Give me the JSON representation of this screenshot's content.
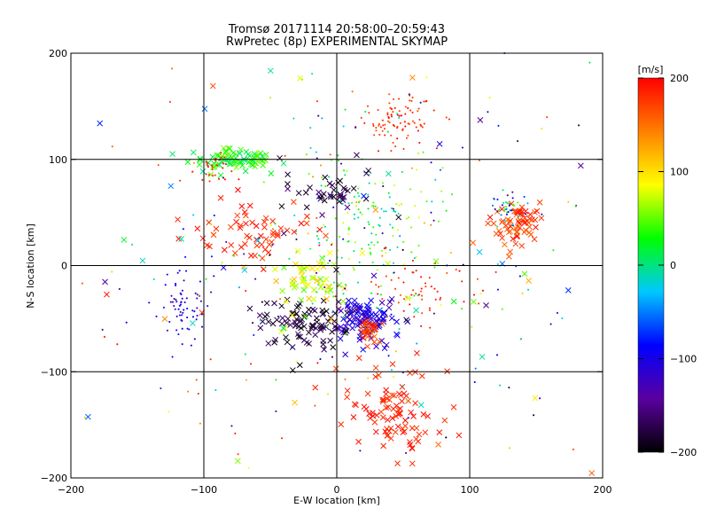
{
  "chart_data": {
    "type": "scatter",
    "title": "Tromsø 20171114 20:58:00–20:59:43",
    "subtitle": "RwPretec (8p) EXPERIMENTAL SKYMAP",
    "xlabel": "E-W location [km]",
    "ylabel": "N-S location [km]",
    "xlim": [
      -200,
      200
    ],
    "ylim": [
      -200,
      200
    ],
    "xticks": [
      -200,
      -100,
      0,
      100,
      200
    ],
    "yticks": [
      -200,
      -100,
      0,
      100,
      200
    ],
    "grid": true,
    "grid_lines": {
      "x": [
        -100,
        0,
        100
      ],
      "y": [
        -100,
        0,
        100
      ]
    },
    "colorbar": {
      "label": "[m/s]",
      "range": [
        -200,
        200
      ],
      "ticks": [
        200,
        100,
        0,
        -100,
        -200
      ],
      "colormap": [
        "#000000",
        "#5a00a0",
        "#0000ff",
        "#00c8ff",
        "#00ff00",
        "#ffff00",
        "#ff8000",
        "#ff0000"
      ]
    },
    "markers": {
      "small": "+",
      "large": "x"
    },
    "clusters": [
      {
        "cx": 45,
        "cy": 137,
        "sx": 15,
        "sy": 12,
        "n": 90,
        "vel": [
          160,
          200
        ],
        "mark": "dot"
      },
      {
        "cx": 43,
        "cy": -138,
        "sx": 17,
        "sy": 20,
        "n": 95,
        "vel": [
          170,
          200
        ],
        "mark": "cross"
      },
      {
        "cx": 133,
        "cy": 40,
        "sx": 9,
        "sy": 12,
        "n": 70,
        "vel": [
          150,
          200
        ],
        "mark": "cross"
      },
      {
        "cx": 128,
        "cy": 52,
        "sx": 8,
        "sy": 10,
        "n": 40,
        "vel": [
          -200,
          100
        ],
        "mark": "dot"
      },
      {
        "cx": -78,
        "cy": 100,
        "sx": 16,
        "sy": 5,
        "n": 80,
        "vel": [
          0,
          60
        ],
        "mark": "cross"
      },
      {
        "cx": -92,
        "cy": 92,
        "sx": 8,
        "sy": 6,
        "n": 30,
        "vel": [
          170,
          200
        ],
        "mark": "dot"
      },
      {
        "cx": -118,
        "cy": -35,
        "sx": 10,
        "sy": 22,
        "n": 70,
        "vel": [
          -130,
          -80
        ],
        "mark": "dot"
      },
      {
        "cx": 20,
        "cy": -50,
        "sx": 12,
        "sy": 10,
        "n": 110,
        "vel": [
          -140,
          -80
        ],
        "mark": "cross"
      },
      {
        "cx": 25,
        "cy": -62,
        "sx": 6,
        "sy": 5,
        "n": 30,
        "vel": [
          150,
          200
        ],
        "mark": "cross"
      },
      {
        "cx": -25,
        "cy": -55,
        "sx": 18,
        "sy": 12,
        "n": 90,
        "vel": [
          -200,
          -160
        ],
        "mark": "cross"
      },
      {
        "cx": 20,
        "cy": 40,
        "sx": 25,
        "sy": 40,
        "n": 160,
        "vel": [
          -30,
          80
        ],
        "mark": "dot"
      },
      {
        "cx": -20,
        "cy": -15,
        "sx": 15,
        "sy": 15,
        "n": 60,
        "vel": [
          40,
          120
        ],
        "mark": "cross"
      },
      {
        "cx": -60,
        "cy": 30,
        "sx": 25,
        "sy": 15,
        "n": 60,
        "vel": [
          170,
          200
        ],
        "mark": "cross"
      },
      {
        "cx": 65,
        "cy": -20,
        "sx": 25,
        "sy": 15,
        "n": 60,
        "vel": [
          160,
          200
        ],
        "mark": "dot"
      },
      {
        "cx": -5,
        "cy": 70,
        "sx": 15,
        "sy": 10,
        "n": 40,
        "vel": [
          -200,
          -150
        ],
        "mark": "cross"
      },
      {
        "cx": 0,
        "cy": 0,
        "sx": 95,
        "sy": 95,
        "n": 220,
        "vel": [
          -200,
          200
        ],
        "mark": "dot"
      },
      {
        "cx": 0,
        "cy": 0,
        "sx": 100,
        "sy": 100,
        "n": 60,
        "vel": [
          -200,
          200
        ],
        "mark": "cross"
      }
    ]
  }
}
